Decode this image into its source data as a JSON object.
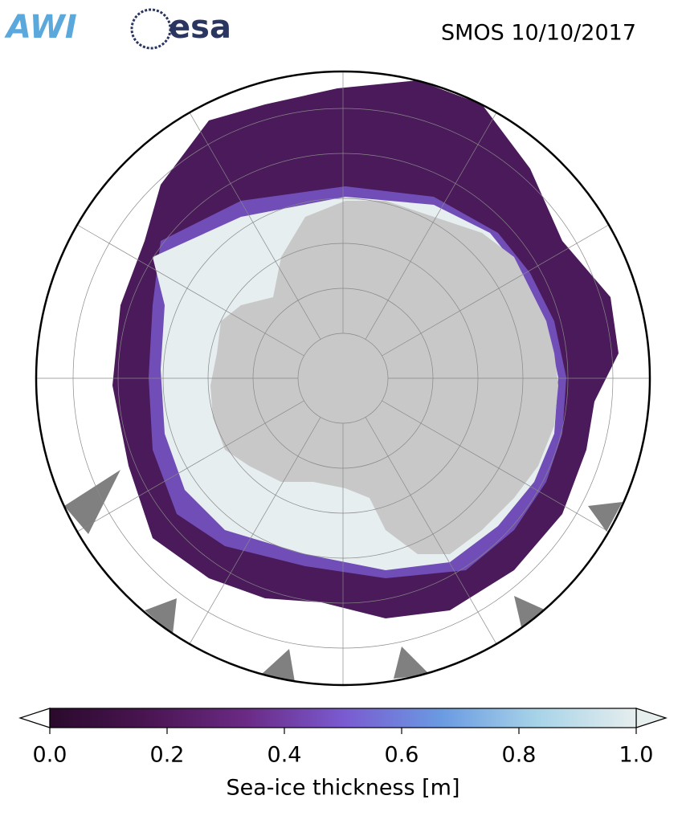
{
  "logos": {
    "awi": "AWI",
    "esa": "esa"
  },
  "title": "SMOS 10/10/2017",
  "colorbar": {
    "label": "Sea-ice thickness [m]",
    "lim": [
      0,
      1
    ],
    "ticks": [
      {
        "value": 0,
        "label": "0.0"
      },
      0.2,
      0.4,
      0.6,
      0.8,
      {
        "value": 1,
        "label": "1.0"
      }
    ],
    "colormap": [
      "#2a0a2c",
      "#4a1552",
      "#6a2a84",
      "#7a5ad0",
      "#6a9ae2",
      "#a8d4e8",
      "#e6eeee"
    ]
  }
}
